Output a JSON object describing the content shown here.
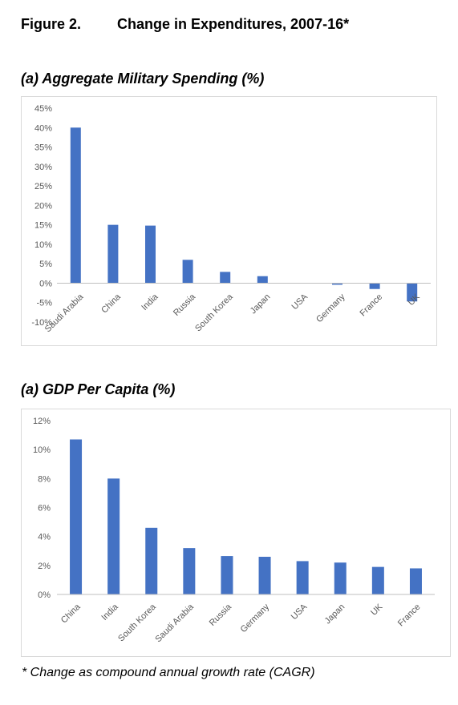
{
  "figure": {
    "label": "Figure 2.",
    "title": "Change in Expenditures, 2007-16*"
  },
  "footnote": "* Change as compound annual growth rate (CAGR)",
  "colors": {
    "bar": "#4472c4",
    "axis": "#bfbfbf",
    "border": "#d9d9d9",
    "tick_text": "#595959"
  },
  "chart_data": [
    {
      "type": "bar",
      "title": "(a) Aggregate Military Spending (%)",
      "categories": [
        "Saudi Arabia",
        "China",
        "India",
        "Russia",
        "South Korea",
        "Japan",
        "USA",
        "Germany",
        "France",
        "UK"
      ],
      "values": [
        40,
        15,
        14.8,
        6,
        2.9,
        1.8,
        0,
        -0.4,
        -1.5,
        -4.7
      ],
      "ylim": [
        -10,
        45
      ],
      "yticks": [
        -10,
        -5,
        0,
        5,
        10,
        15,
        20,
        25,
        30,
        35,
        40,
        45
      ],
      "ytick_labels": [
        "-10%",
        "-5%",
        "0%",
        "5%",
        "10%",
        "15%",
        "20%",
        "25%",
        "30%",
        "35%",
        "40%",
        "45%"
      ],
      "xlabel": "",
      "ylabel": "",
      "grid": false,
      "legend": "none"
    },
    {
      "type": "bar",
      "title": "(a) GDP Per Capita (%)",
      "categories": [
        "China",
        "India",
        "South Korea",
        "Saudi Arabia",
        "Russia",
        "Germany",
        "USA",
        "Japan",
        "UK",
        "France"
      ],
      "values": [
        10.7,
        8.0,
        4.6,
        3.2,
        2.65,
        2.6,
        2.3,
        2.2,
        1.9,
        1.8
      ],
      "ylim": [
        0,
        12
      ],
      "yticks": [
        0,
        2,
        4,
        6,
        8,
        10,
        12
      ],
      "ytick_labels": [
        "0%",
        "2%",
        "4%",
        "6%",
        "8%",
        "10%",
        "12%"
      ],
      "xlabel": "",
      "ylabel": "",
      "grid": false,
      "legend": "none"
    }
  ]
}
